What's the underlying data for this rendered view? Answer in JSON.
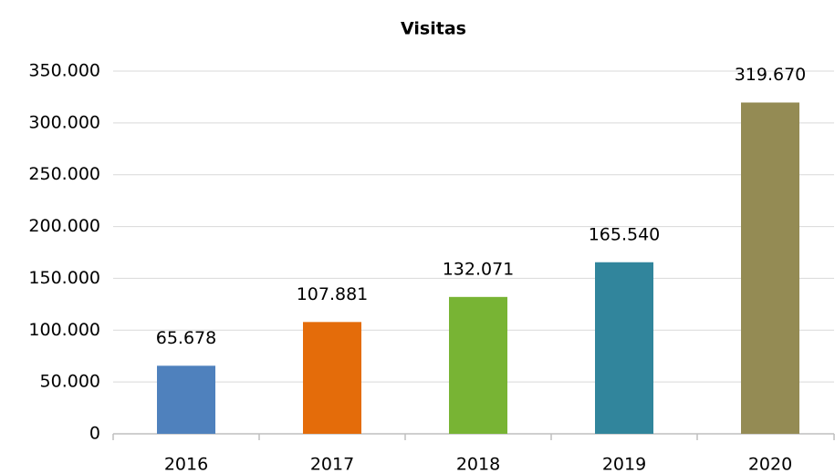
{
  "chart_data": {
    "type": "bar",
    "title": "Visitas",
    "categories": [
      "2016",
      "2017",
      "2018",
      "2019",
      "2020"
    ],
    "values": [
      65678,
      107881,
      132071,
      165540,
      319670
    ],
    "value_labels": [
      "65.678",
      "107.881",
      "132.071",
      "165.540",
      "319.670"
    ],
    "colors": [
      "#4f81bd",
      "#e46c0a",
      "#78b434",
      "#31859c",
      "#948b54"
    ],
    "ylim": [
      0,
      350000
    ],
    "yticks": [
      0,
      {
        "value": 50000,
        "label": "50.000"
      },
      {
        "value": 100000,
        "label": "100.000"
      },
      {
        "value": 150000,
        "label": "150.000"
      },
      {
        "value": 200000,
        "label": "200.000"
      },
      {
        "value": 250000,
        "label": "250.000"
      },
      {
        "value": 300000,
        "label": "300.000"
      },
      {
        "value": 350000,
        "label": "350.000"
      }
    ],
    "grid": true
  }
}
